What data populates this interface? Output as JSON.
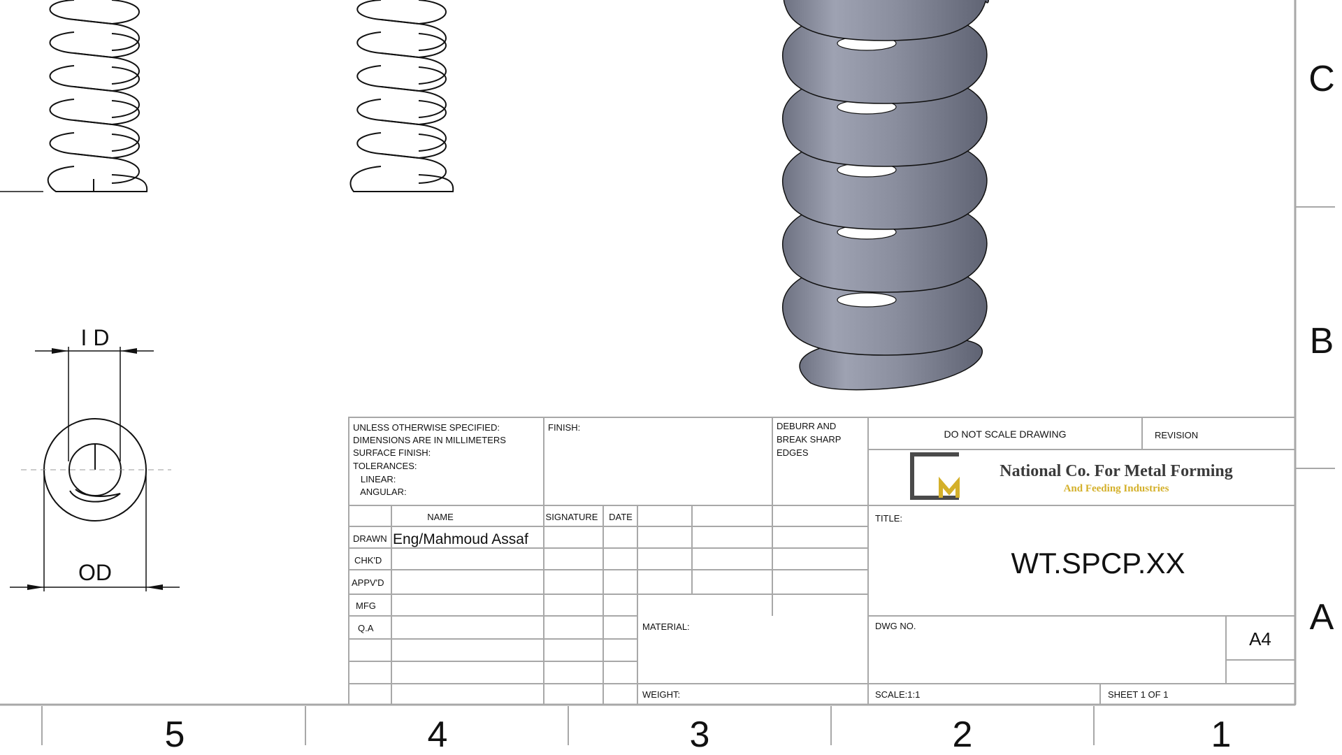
{
  "drawing": {
    "border_zones": {
      "columns": [
        "5",
        "4",
        "3",
        "2",
        "1"
      ],
      "rows": [
        "C",
        "B",
        "A"
      ]
    },
    "dimensions": {
      "inner_diameter": "I D",
      "outer_diameter": "OD"
    },
    "title_block": {
      "notes": [
        "UNLESS OTHERWISE SPECIFIED:",
        "DIMENSIONS ARE IN MILLIMETERS",
        "SURFACE FINISH:",
        "TOLERANCES:",
        "   LINEAR:",
        "   ANGULAR:"
      ],
      "finish_label": "FINISH:",
      "deburr_lines": [
        "DEBURR AND",
        "BREAK SHARP",
        "EDGES"
      ],
      "do_not_scale": "DO NOT SCALE DRAWING",
      "revision_label": "REVISION",
      "company": {
        "name": "National Co. For Metal Forming",
        "tagline": "And Feeding Industries",
        "brand_color": "#d4b02a",
        "logo_color": "#4a4a4a"
      },
      "col_headers": {
        "name": "NAME",
        "signature": "SIGNATURE",
        "date": "DATE"
      },
      "row_labels": {
        "drawn": "DRAWN",
        "checked": "CHK'D",
        "approved": "APPV'D",
        "mfg": "MFG",
        "qa": "Q.A"
      },
      "drawn_by": "Eng/Mahmoud Assaf",
      "title_label": "TITLE:",
      "title_value": "WT.SPCP.XX",
      "material_label": "MATERIAL:",
      "dwg_no_label": "DWG NO.",
      "sheet_size": "A4",
      "weight_label": "WEIGHT:",
      "scale": "SCALE:1:1",
      "sheet": "SHEET 1 OF 1"
    },
    "colors": {
      "line": "#111111",
      "frame": "#a8a8a8",
      "spring_metal": "#8a8e9e"
    }
  }
}
